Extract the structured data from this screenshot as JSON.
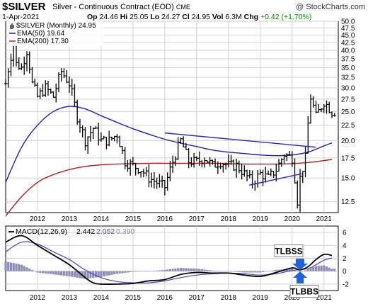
{
  "header": {
    "symbol": "$SILVER",
    "subtitle": "Silver - Continuous Contract (EOD)",
    "exchange": "CME",
    "watermark": "@ StockCharts.com",
    "date": "1-Apr-2021",
    "ohlc": {
      "open_label": "Op",
      "open": "24.46",
      "high_label": "Hi",
      "high": "25.05",
      "low_label": "Lo",
      "low": "24.27",
      "close_label": "Cl",
      "close": "24.95",
      "volume_label": "Vol",
      "volume": "6.3M",
      "change_label": "Chg",
      "change": "+0.42 (+1.70%)"
    }
  },
  "legend": {
    "price": "$SILVER (Monthly) 24.95",
    "ema50": "EMA(50) 19.64",
    "ema200": "EMA(200) 17.30",
    "macd_label": "MACD(12,26,9)",
    "macd_v1": "2.442",
    "macd_v2": "2.052",
    "macd_v3": "0.390"
  },
  "annotations": {
    "top": "TLBSS",
    "bottom": "TLBBS"
  },
  "colors": {
    "price": "#000000",
    "ema50": "#1e1eb4",
    "ema200": "#b41e1e",
    "macd": "#000000",
    "signal": "#4646c8",
    "histogram": "#8c8cb4",
    "trendline": "#2828c8",
    "arrow": "#1e64dc",
    "grid": "#d2d2d2",
    "change": "#0a8a0a"
  },
  "chart_data": [
    {
      "type": "bar",
      "title": "$SILVER (Monthly)",
      "log_scale": true,
      "ylim": [
        11.5,
        50
      ],
      "y_ticks": [
        12.5,
        15.0,
        17.5,
        20.0,
        22.5,
        25.0,
        27.5,
        30.0,
        32.5,
        35.0,
        37.5,
        40.0,
        42.5,
        45.0,
        47.5,
        50.0
      ],
      "x_ticks": [
        "2012",
        "2013",
        "2014",
        "2015",
        "2016",
        "2017",
        "2018",
        "2019",
        "2020",
        "2021"
      ],
      "grid": true,
      "legend_position": "top-left",
      "series": [
        {
          "name": "$SILVER (Monthly)",
          "x": [
            2011.0,
            2011.25,
            2011.33,
            2011.5,
            2011.67,
            2011.83,
            2012.0,
            2012.25,
            2012.5,
            2012.75,
            2013.0,
            2013.25,
            2013.5,
            2013.75,
            2014.0,
            2014.25,
            2014.5,
            2014.75,
            2015.0,
            2015.25,
            2015.5,
            2015.75,
            2016.0,
            2016.25,
            2016.5,
            2016.75,
            2017.0,
            2017.25,
            2017.5,
            2017.75,
            2018.0,
            2018.25,
            2018.5,
            2018.75,
            2019.0,
            2019.25,
            2019.5,
            2019.75,
            2020.0,
            2020.17,
            2020.25,
            2020.42,
            2020.58,
            2020.75,
            2021.0,
            2021.25
          ],
          "values": [
            31.0,
            42.0,
            36.0,
            35.0,
            40.0,
            31.0,
            28.0,
            30.0,
            28.0,
            34.0,
            31.0,
            24.0,
            20.0,
            22.0,
            20.0,
            20.0,
            21.0,
            17.0,
            16.5,
            16.0,
            15.0,
            14.5,
            14.0,
            17.0,
            20.0,
            17.0,
            17.0,
            17.5,
            16.5,
            17.0,
            16.5,
            16.5,
            15.5,
            14.5,
            15.5,
            15.0,
            16.0,
            18.0,
            17.5,
            12.5,
            15.0,
            17.5,
            28.0,
            24.0,
            27.0,
            24.95
          ]
        },
        {
          "name": "EMA(50)",
          "x": [
            2011.0,
            2011.5,
            2012.0,
            2012.5,
            2013.0,
            2013.5,
            2014.0,
            2014.5,
            2015.0,
            2015.5,
            2016.0,
            2016.5,
            2017.0,
            2017.5,
            2018.0,
            2018.5,
            2019.0,
            2019.5,
            2020.0,
            2020.5,
            2021.0,
            2021.25
          ],
          "values": [
            14.5,
            19.0,
            22.5,
            25.0,
            26.0,
            25.5,
            24.2,
            23.0,
            21.9,
            21.0,
            20.2,
            19.6,
            19.1,
            18.6,
            18.3,
            18.1,
            17.9,
            17.8,
            17.9,
            18.3,
            19.2,
            19.64
          ]
        },
        {
          "name": "EMA(200)",
          "x": [
            2011.0,
            2011.5,
            2012.0,
            2012.5,
            2013.0,
            2013.5,
            2014.0,
            2014.5,
            2015.0,
            2015.5,
            2016.0,
            2016.5,
            2017.0,
            2017.5,
            2018.0,
            2018.5,
            2019.0,
            2019.5,
            2020.0,
            2020.5,
            2021.0,
            2021.25
          ],
          "values": [
            11.2,
            13.0,
            14.5,
            15.4,
            16.0,
            16.4,
            16.6,
            16.7,
            16.75,
            16.8,
            16.8,
            16.8,
            16.8,
            16.8,
            16.75,
            16.7,
            16.7,
            16.7,
            16.75,
            16.9,
            17.15,
            17.3
          ]
        }
      ],
      "trendlines": [
        {
          "x": [
            2016.0,
            2020.75
          ],
          "values": [
            21.2,
            19.0
          ]
        },
        {
          "x": [
            2018.65,
            2020.3
          ],
          "values": [
            14.2,
            15.5
          ]
        }
      ]
    },
    {
      "type": "line",
      "title": "MACD(12,26,9)",
      "ylim": [
        -3,
        7
      ],
      "y_ticks": [
        -2,
        0,
        2,
        4,
        6
      ],
      "x_ticks": [
        "2012",
        "2013",
        "2014",
        "2015",
        "2016",
        "2017",
        "2018",
        "2019",
        "2020",
        "2021"
      ],
      "series": [
        {
          "name": "MACD",
          "x": [
            2011.0,
            2011.5,
            2012.0,
            2012.5,
            2013.0,
            2013.5,
            2013.75,
            2014.0,
            2014.5,
            2015.0,
            2015.5,
            2016.0,
            2016.5,
            2017.0,
            2017.5,
            2018.0,
            2018.5,
            2019.0,
            2019.5,
            2020.0,
            2020.25,
            2020.5,
            2020.75,
            2021.0,
            2021.25
          ],
          "values": [
            4.5,
            5.5,
            4.0,
            2.5,
            1.0,
            -1.0,
            -1.8,
            -2.0,
            -2.0,
            -1.9,
            -1.5,
            -1.3,
            -0.5,
            -0.2,
            -0.3,
            -0.3,
            -0.6,
            -0.8,
            -0.2,
            0.5,
            0.2,
            0.7,
            1.8,
            2.6,
            2.442
          ]
        },
        {
          "name": "Signal",
          "x": [
            2011.0,
            2011.5,
            2012.0,
            2012.5,
            2013.0,
            2013.5,
            2014.0,
            2014.5,
            2015.0,
            2015.5,
            2016.0,
            2016.5,
            2017.0,
            2017.5,
            2018.0,
            2018.5,
            2019.0,
            2019.5,
            2020.0,
            2020.5,
            2020.75,
            2021.0,
            2021.25
          ],
          "values": [
            3.0,
            4.5,
            4.2,
            3.0,
            1.8,
            0.2,
            -1.0,
            -1.6,
            -1.8,
            -1.8,
            -1.5,
            -1.0,
            -0.6,
            -0.4,
            -0.3,
            -0.4,
            -0.6,
            -0.4,
            0.1,
            0.4,
            1.0,
            1.7,
            2.052
          ]
        },
        {
          "name": "Histogram",
          "x": [
            2011.0,
            2011.5,
            2012.0,
            2012.5,
            2013.0,
            2013.5,
            2013.75,
            2014.0,
            2014.5,
            2015.0,
            2015.5,
            2016.0,
            2016.5,
            2017.0,
            2017.5,
            2018.0,
            2018.5,
            2019.0,
            2019.5,
            2020.0,
            2020.25,
            2020.5,
            2020.75,
            2021.0,
            2021.25
          ],
          "values": [
            1.5,
            1.0,
            -0.2,
            -0.5,
            -0.8,
            -1.2,
            -1.0,
            -0.9,
            -0.4,
            -0.1,
            0.0,
            0.2,
            0.5,
            0.4,
            0.1,
            0.0,
            -0.2,
            -0.2,
            0.2,
            0.4,
            -0.2,
            0.3,
            0.8,
            0.9,
            0.39
          ]
        }
      ]
    }
  ]
}
